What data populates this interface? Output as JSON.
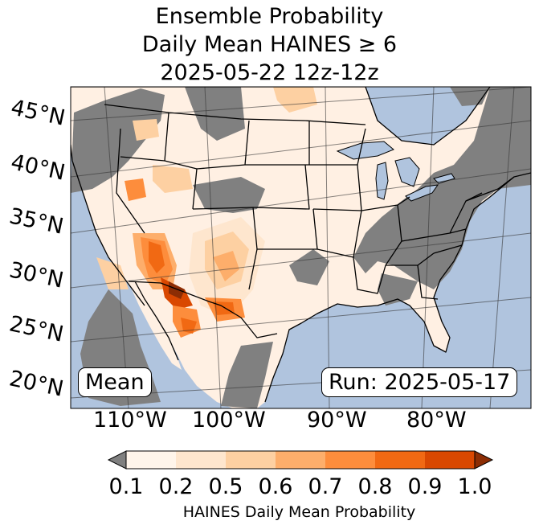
{
  "title": {
    "line1": "Ensemble Probability",
    "line2": "Daily Mean HAINES ≥ 6",
    "line3": "2025-05-22 12z-12z"
  },
  "map": {
    "ocean_color": "#b0c4de",
    "no_data_color": "#808080",
    "land_low_color": "#fff0e3",
    "border_color": "#000000",
    "lat_labels": [
      "45°N",
      "40°N",
      "35°N",
      "30°N",
      "25°N",
      "20°N"
    ],
    "lon_labels": [
      "110°W",
      "100°W",
      "90°W",
      "80°W"
    ]
  },
  "annotations": {
    "left_box": "Mean",
    "right_box": "Run: 2025-05-17"
  },
  "colorbar": {
    "ticks": [
      "0.1",
      "0.2",
      "0.5",
      "0.6",
      "0.7",
      "0.8",
      "0.9",
      "1.0"
    ],
    "colors": [
      "#fff5eb",
      "#fee6ce",
      "#fdd0a2",
      "#fdae6b",
      "#fd8d3c",
      "#f16913",
      "#d94801"
    ],
    "under_color": "#808080",
    "over_color": "#8c2d04",
    "label": "HAINES Daily Mean Probability"
  }
}
